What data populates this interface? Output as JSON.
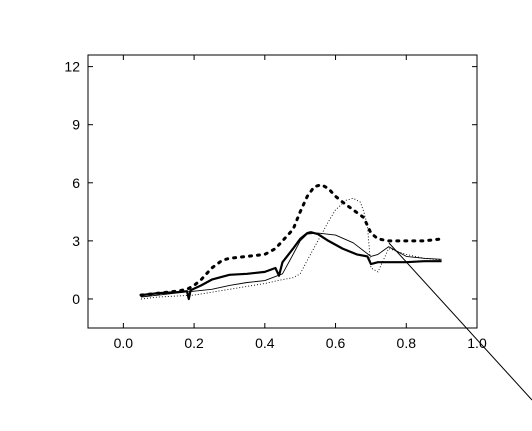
{
  "chart_data": {
    "type": "line",
    "title": "",
    "xlabel": "",
    "ylabel": "",
    "xlim": [
      -0.1,
      1.0
    ],
    "ylim": [
      -1.5,
      12.6
    ],
    "grid": false,
    "x_ticks": [
      0.0,
      0.2,
      0.4,
      0.6,
      0.8,
      1.0
    ],
    "x_tick_labels": [
      "0.0",
      "0.2",
      "0.4",
      "0.6",
      "0.8",
      "1.0"
    ],
    "y_ticks": [
      0,
      3,
      6,
      9,
      12
    ],
    "y_tick_labels": [
      "0",
      "3",
      "6",
      "9",
      "12"
    ],
    "series": [
      {
        "style": "dotted-bold",
        "x": [
          0.05,
          0.1,
          0.15,
          0.18,
          0.2,
          0.22,
          0.25,
          0.28,
          0.3,
          0.35,
          0.4,
          0.43,
          0.45,
          0.48,
          0.5,
          0.52,
          0.54,
          0.56,
          0.58,
          0.6,
          0.62,
          0.65,
          0.68,
          0.7,
          0.72,
          0.75,
          0.8,
          0.85,
          0.9
        ],
        "y": [
          0.2,
          0.3,
          0.4,
          0.5,
          0.7,
          1.0,
          1.6,
          2.0,
          2.1,
          2.2,
          2.3,
          2.6,
          3.0,
          3.6,
          4.5,
          5.3,
          5.8,
          5.9,
          5.7,
          5.3,
          5.0,
          4.6,
          4.2,
          3.4,
          3.1,
          3.0,
          3.0,
          3.0,
          3.1
        ]
      },
      {
        "style": "solid-bold",
        "x": [
          0.05,
          0.1,
          0.15,
          0.18,
          0.185,
          0.19,
          0.22,
          0.25,
          0.3,
          0.35,
          0.4,
          0.43,
          0.44,
          0.45,
          0.48,
          0.5,
          0.52,
          0.53,
          0.55,
          0.58,
          0.62,
          0.66,
          0.69,
          0.7,
          0.72,
          0.75,
          0.8,
          0.85,
          0.9
        ],
        "y": [
          0.2,
          0.3,
          0.35,
          0.4,
          0.0,
          0.45,
          0.7,
          1.0,
          1.25,
          1.3,
          1.4,
          1.6,
          1.2,
          1.9,
          2.6,
          3.1,
          3.4,
          3.45,
          3.35,
          3.0,
          2.6,
          2.3,
          2.2,
          1.8,
          1.9,
          1.9,
          1.9,
          1.95,
          1.95
        ]
      },
      {
        "style": "solid-thin",
        "x": [
          0.05,
          0.1,
          0.15,
          0.2,
          0.25,
          0.3,
          0.35,
          0.4,
          0.45,
          0.48,
          0.5,
          0.52,
          0.55,
          0.6,
          0.65,
          0.7,
          0.72,
          0.75,
          0.8,
          0.85,
          0.9
        ],
        "y": [
          0.1,
          0.2,
          0.3,
          0.4,
          0.5,
          0.7,
          0.85,
          0.95,
          1.3,
          2.3,
          3.0,
          3.35,
          3.4,
          3.3,
          2.9,
          2.2,
          2.3,
          2.7,
          2.2,
          2.1,
          2.05
        ]
      },
      {
        "style": "dotted-thin",
        "x": [
          0.05,
          0.1,
          0.2,
          0.3,
          0.4,
          0.45,
          0.48,
          0.5,
          0.52,
          0.55,
          0.58,
          0.6,
          0.63,
          0.65,
          0.67,
          0.68,
          0.69,
          0.7,
          0.72,
          0.75,
          0.8,
          0.85,
          0.9
        ],
        "y": [
          0.0,
          0.1,
          0.2,
          0.5,
          0.8,
          1.0,
          1.1,
          1.3,
          2.0,
          3.0,
          4.0,
          4.6,
          5.1,
          5.2,
          5.0,
          4.5,
          3.8,
          1.6,
          1.4,
          2.6,
          2.3,
          2.1,
          2.0
        ]
      }
    ],
    "colors": {
      "axis": "#000000",
      "series": "#000000",
      "background": "#ffffff"
    }
  }
}
